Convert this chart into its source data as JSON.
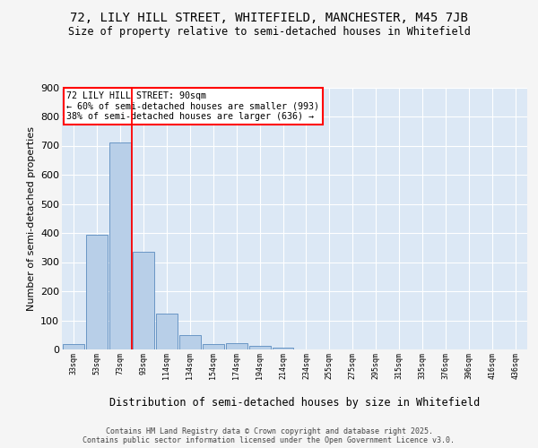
{
  "title1": "72, LILY HILL STREET, WHITEFIELD, MANCHESTER, M45 7JB",
  "title2": "Size of property relative to semi-detached houses in Whitefield",
  "xlabel": "Distribution of semi-detached houses by size in Whitefield",
  "ylabel": "Number of semi-detached properties",
  "categories": [
    "33sqm",
    "53sqm",
    "73sqm",
    "93sqm",
    "114sqm",
    "134sqm",
    "154sqm",
    "174sqm",
    "194sqm",
    "214sqm",
    "234sqm",
    "255sqm",
    "275sqm",
    "295sqm",
    "315sqm",
    "335sqm",
    "376sqm",
    "396sqm",
    "416sqm",
    "436sqm"
  ],
  "values": [
    18,
    393,
    710,
    335,
    122,
    50,
    17,
    22,
    11,
    6,
    0,
    0,
    0,
    0,
    0,
    0,
    0,
    0,
    0,
    0
  ],
  "bar_color": "#b8cfe8",
  "bar_edge_color": "#5a8bbf",
  "background_color": "#dce8f5",
  "grid_color": "#ffffff",
  "vline_x_index": 2,
  "vline_color": "red",
  "annotation_text": "72 LILY HILL STREET: 90sqm\n← 60% of semi-detached houses are smaller (993)\n38% of semi-detached houses are larger (636) →",
  "annotation_box_color": "white",
  "annotation_box_edge": "red",
  "footer": "Contains HM Land Registry data © Crown copyright and database right 2025.\nContains public sector information licensed under the Open Government Licence v3.0.",
  "fig_bg": "#f5f5f5",
  "ylim": [
    0,
    900
  ],
  "yticks": [
    0,
    100,
    200,
    300,
    400,
    500,
    600,
    700,
    800,
    900
  ]
}
